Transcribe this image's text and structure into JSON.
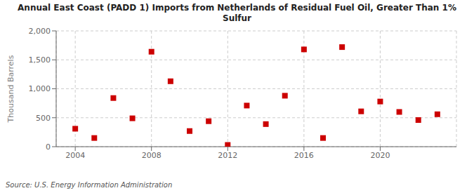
{
  "chart_data": {
    "type": "scatter",
    "title": "Annual East Coast (PADD 1) Imports from Netherlands of Residual Fuel Oil, Greater Than 1%\nSulfur",
    "ylabel": "Thousand Barrels",
    "source": "Source: U.S. Energy Information Administration",
    "x": [
      2004,
      2005,
      2006,
      2007,
      2008,
      2009,
      2010,
      2011,
      2012,
      2013,
      2014,
      2015,
      2016,
      2017,
      2018,
      2019,
      2020,
      2021,
      2022,
      2023
    ],
    "values": [
      310,
      150,
      840,
      490,
      1640,
      1130,
      270,
      440,
      30,
      710,
      390,
      880,
      1680,
      150,
      1720,
      610,
      780,
      600,
      460,
      560
    ],
    "color": "#cc0000",
    "marker": "square",
    "xlim": [
      2003,
      2024
    ],
    "xticks": [
      2004,
      2008,
      2012,
      2016,
      2020
    ],
    "ylim": [
      0,
      2000
    ],
    "yticks": [
      0,
      500,
      {
        "value": 1000,
        "label": "1,000"
      },
      {
        "value": 1500,
        "label": "1,500"
      },
      {
        "value": 2000,
        "label": "2,000"
      }
    ],
    "grid": true
  }
}
